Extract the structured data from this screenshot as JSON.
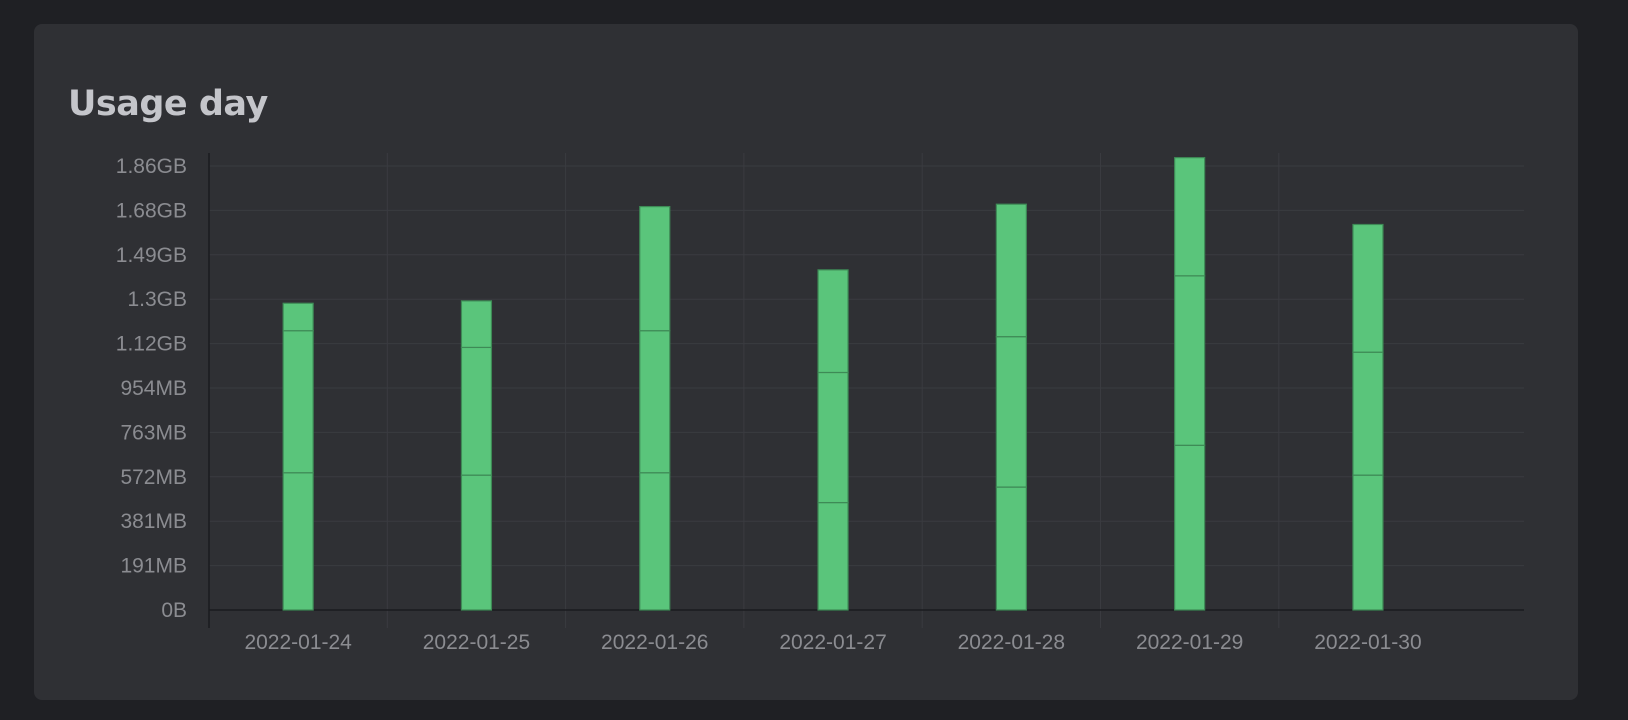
{
  "card": {
    "title": "Usage day"
  },
  "colors": {
    "bar_fill": "#5ac57b",
    "bar_stroke": "#3e8a56",
    "grid": "#3a3b40",
    "axis": "#1a1b1e",
    "tick_text": "#8b8c91"
  },
  "chart_data": {
    "type": "bar",
    "stacked": true,
    "title": "Usage day",
    "xlabel": "",
    "ylabel": "",
    "grid": true,
    "legend": "none",
    "categories": [
      "2022-01-24",
      "2022-01-25",
      "2022-01-26",
      "2022-01-27",
      "2022-01-28",
      "2022-01-29",
      "2022-01-30"
    ],
    "y_tick_labels": [
      "0B",
      "191MB",
      "381MB",
      "572MB",
      "763MB",
      "954MB",
      "1.12GB",
      "1.3GB",
      "1.49GB",
      "1.68GB",
      "1.86GB"
    ],
    "ylim": [
      0,
      2000
    ],
    "y_unit": "MB",
    "series": [
      {
        "values": [
          575,
          565,
          575,
          450,
          515,
          690,
          565
        ]
      },
      {
        "values": [
          595,
          535,
          595,
          545,
          630,
          710,
          515
        ]
      },
      {
        "values": [
          115,
          195,
          520,
          430,
          555,
          495,
          535
        ]
      }
    ]
  }
}
